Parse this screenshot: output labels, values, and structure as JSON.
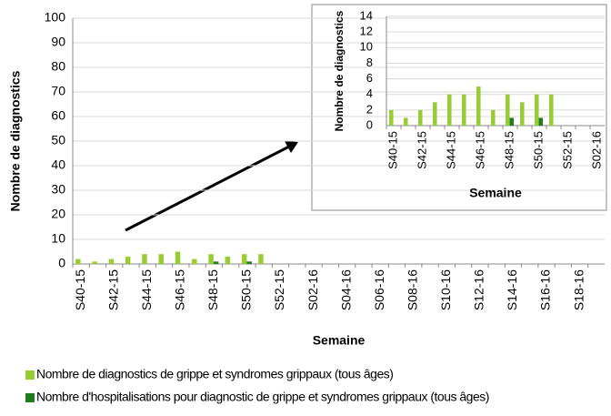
{
  "chart_data": [
    {
      "type": "bar",
      "x_label": "Semaine",
      "y_label": "Nombre de diagnostics",
      "categories": [
        "S40-15",
        null,
        "S42-15",
        null,
        "S44-15",
        null,
        "S46-15",
        null,
        "S48-15",
        null,
        "S50-15",
        null,
        "S52-15",
        null,
        "S02-16",
        null,
        "S04-16",
        null,
        "S06-16",
        null,
        "S08-16",
        null,
        "S10-16",
        null,
        "S12-16",
        null,
        "S14-16",
        null,
        "S16-16",
        null,
        "S18-16",
        null
      ],
      "series": [
        {
          "name": "Nombre de diagnostics de grippe et syndromes grippaux (tous âges)",
          "color": "#99cc33",
          "values": [
            2,
            1,
            2,
            3,
            4,
            4,
            5,
            2,
            4,
            3,
            4,
            4,
            null,
            null,
            null,
            null,
            null,
            null,
            null,
            null,
            null,
            null,
            null,
            null,
            null,
            null,
            null,
            null,
            null,
            null,
            null,
            null
          ]
        },
        {
          "name": "Nombre d'hospitalisations pour diagnostic de grippe et syndromes grippaux (tous âges)",
          "color": "#1e7d1e",
          "values": [
            0,
            0,
            0,
            0,
            0,
            0,
            0,
            0,
            1,
            0,
            1,
            0,
            null,
            null,
            null,
            null,
            null,
            null,
            null,
            null,
            null,
            null,
            null,
            null,
            null,
            null,
            null,
            null,
            null,
            null,
            null,
            null
          ]
        }
      ],
      "ylim": [
        0,
        100
      ],
      "yticks": [
        0,
        10,
        20,
        30,
        40,
        50,
        60,
        70,
        80,
        90,
        100
      ],
      "grid": true
    },
    {
      "type": "bar",
      "x_label": "Semaine",
      "y_label": "Nombre de diagnostics",
      "categories": [
        "S40-15",
        null,
        "S42-15",
        null,
        "S44-15",
        null,
        "S46-15",
        null,
        "S48-15",
        null,
        "S50-15",
        null,
        "S52-15",
        null,
        "S02-16"
      ],
      "series": [
        {
          "color": "#99cc33",
          "values": [
            2,
            1,
            2,
            3,
            4,
            4,
            5,
            2,
            4,
            3,
            4,
            4,
            null,
            null,
            null
          ]
        },
        {
          "color": "#1e7d1e",
          "values": [
            0,
            0,
            0,
            0,
            0,
            0,
            0,
            0,
            1,
            0,
            1,
            0,
            null,
            null,
            null
          ]
        }
      ],
      "ylim": [
        0,
        14
      ],
      "yticks": [
        0,
        2,
        4,
        6,
        8,
        10,
        12,
        14
      ],
      "grid": true
    }
  ]
}
